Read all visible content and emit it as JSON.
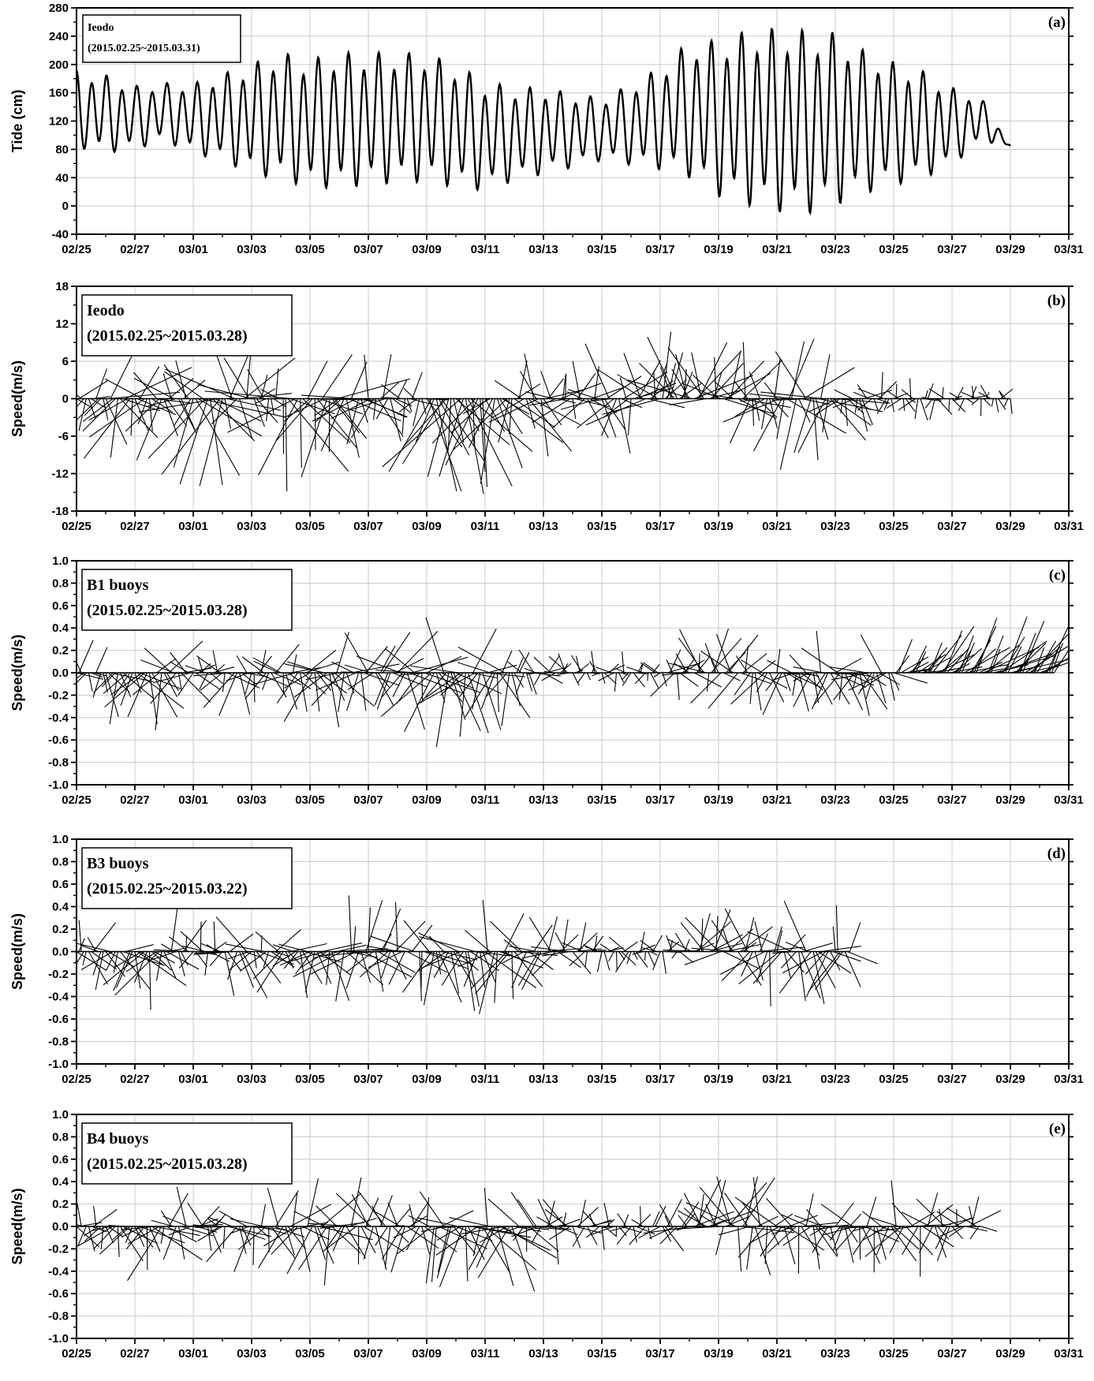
{
  "chart_data": [
    {
      "panel": "a",
      "type": "line",
      "tag": "(a)",
      "ylabel": "Tide (cm)",
      "legend_lines": [
        "Ieodo",
        "(2015.02.25~2015.03.31)"
      ],
      "legend_font_size": 14,
      "yticks": [
        280,
        240,
        200,
        160,
        120,
        80,
        40,
        0,
        -40
      ],
      "ylim": [
        -40,
        280
      ],
      "xlim": [
        "02/25",
        "03/31"
      ],
      "xticks": [
        "02/25",
        "02/27",
        "03/01",
        "03/03",
        "03/05",
        "03/07",
        "03/09",
        "03/11",
        "03/13",
        "03/15",
        "03/17",
        "03/19",
        "03/21",
        "03/23",
        "03/25",
        "03/27",
        "03/29",
        "03/31"
      ],
      "grid": true,
      "series": [
        {
          "values_note": "semi-diurnal tide; daily higher-high / lower-low envelope",
          "x": [
            "02/25",
            "02/26",
            "02/27",
            "02/28",
            "03/01",
            "03/02",
            "03/03",
            "03/04",
            "03/05",
            "03/06",
            "03/07",
            "03/08",
            "03/09",
            "03/10",
            "03/11",
            "03/12",
            "03/13",
            "03/14",
            "03/15",
            "03/16",
            "03/17",
            "03/18",
            "03/19",
            "03/20",
            "03/21",
            "03/22",
            "03/23",
            "03/24",
            "03/25",
            "03/26",
            "03/27",
            "03/28",
            "03/29"
          ],
          "high": [
            195,
            188,
            172,
            176,
            176,
            190,
            205,
            222,
            212,
            222,
            222,
            222,
            220,
            205,
            180,
            172,
            170,
            162,
            155,
            175,
            200,
            238,
            240,
            255,
            258,
            255,
            252,
            225,
            208,
            195,
            170,
            155,
            85
          ],
          "low": [
            80,
            72,
            78,
            90,
            72,
            60,
            42,
            32,
            22,
            20,
            25,
            28,
            30,
            22,
            18,
            32,
            42,
            52,
            62,
            55,
            48,
            35,
            8,
            -5,
            -15,
            -18,
            -5,
            12,
            25,
            35,
            55,
            90,
            85
          ]
        }
      ]
    },
    {
      "panel": "b",
      "type": "stick",
      "tag": "(b)",
      "ylabel": "Speed(m/s)",
      "legend_lines": [
        "Ieodo",
        "(2015.02.25~2015.03.28)"
      ],
      "legend_font_size": 20,
      "yticks": [
        18,
        12,
        6,
        0,
        -6,
        -12,
        -18
      ],
      "ylim": [
        -18,
        18
      ],
      "xlim": [
        "02/25",
        "03/31"
      ],
      "end": "03/29",
      "xticks": [
        "02/25",
        "02/27",
        "03/01",
        "03/03",
        "03/05",
        "03/07",
        "03/09",
        "03/11",
        "03/13",
        "03/15",
        "03/17",
        "03/19",
        "03/21",
        "03/23",
        "03/25",
        "03/27",
        "03/29",
        "03/31"
      ],
      "grid": true,
      "amplitude_by_day": [
        6,
        14,
        12,
        8,
        16,
        14,
        6,
        16,
        14,
        10,
        8,
        6,
        16,
        18,
        14,
        12,
        8,
        8,
        10,
        12,
        13,
        12,
        10,
        8,
        12,
        12,
        6,
        5,
        4,
        4,
        3,
        3,
        2
      ],
      "bias_by_day": [
        -0.5,
        -0.6,
        -0.5,
        0.0,
        -0.6,
        0.2,
        -0.2,
        -0.6,
        -0.6,
        -0.5,
        -0.3,
        -0.1,
        -0.9,
        -0.9,
        -0.8,
        -0.3,
        0.2,
        0.1,
        -0.2,
        0.5,
        0.8,
        0.7,
        0.5,
        -0.5,
        -0.2,
        -0.5,
        -0.6,
        -0.2,
        -0.1,
        -0.1,
        -0.1,
        -0.1,
        -0.1
      ]
    },
    {
      "panel": "c",
      "type": "stick",
      "tag": "(c)",
      "ylabel": "Speed(m/s)",
      "legend_lines": [
        "B1 buoys",
        "(2015.02.25~2015.03.28)"
      ],
      "legend_font_size": 20,
      "yticks": [
        1.0,
        0.8,
        0.6,
        0.4,
        0.2,
        0.0,
        -0.2,
        -0.4,
        -0.6,
        -0.8,
        -1.0
      ],
      "ylim": [
        -1.0,
        1.0
      ],
      "xlim": [
        "02/25",
        "03/31"
      ],
      "end": "03/30.5",
      "xticks": [
        "02/25",
        "02/27",
        "03/01",
        "03/03",
        "03/05",
        "03/07",
        "03/09",
        "03/11",
        "03/13",
        "03/15",
        "03/17",
        "03/19",
        "03/21",
        "03/23",
        "03/25",
        "03/27",
        "03/29",
        "03/31"
      ],
      "grid": true,
      "amplitude_by_day": [
        0.35,
        0.5,
        0.6,
        0.45,
        0.3,
        0.45,
        0.35,
        0.45,
        0.55,
        0.5,
        0.5,
        0.6,
        0.7,
        0.7,
        0.55,
        0.3,
        0.25,
        0.2,
        0.2,
        0.2,
        0.35,
        0.45,
        0.45,
        0.45,
        0.45,
        0.45,
        0.45,
        0.45,
        0.35,
        0.55,
        0.6,
        0.65,
        0.65,
        0.65,
        0.6,
        0.5
      ],
      "bias_by_day": [
        -0.3,
        -0.7,
        -0.7,
        -0.3,
        0.0,
        -0.5,
        0.0,
        -0.5,
        -0.6,
        -0.4,
        -0.2,
        -0.3,
        -0.6,
        -0.6,
        -0.5,
        -0.2,
        0.3,
        0.2,
        -0.3,
        -0.3,
        0.2,
        0.6,
        0.5,
        -0.4,
        -0.5,
        -0.5,
        -0.5,
        -0.5,
        0.8,
        0.9,
        0.9,
        0.9,
        0.9,
        0.9,
        0.8,
        0.8
      ],
      "east_bias_by_day": [
        0,
        0,
        0,
        0,
        0,
        0,
        0,
        0,
        0,
        0,
        0,
        0,
        0,
        0,
        0,
        0,
        0,
        0,
        0,
        0,
        0,
        0,
        0,
        0,
        0,
        0,
        0,
        0,
        0.8,
        0.8,
        0.8,
        0.8,
        0.8,
        0.8,
        0.8,
        0.8
      ]
    },
    {
      "panel": "d",
      "type": "stick",
      "tag": "(d)",
      "ylabel": "Speed(m/s)",
      "legend_lines": [
        "B3 buoys",
        "(2015.02.25~2015.03.22)"
      ],
      "legend_font_size": 20,
      "yticks": [
        1.0,
        0.8,
        0.6,
        0.4,
        0.2,
        0.0,
        -0.2,
        -0.4,
        -0.6,
        -0.8,
        -1.0
      ],
      "ylim": [
        -1.0,
        1.0
      ],
      "xlim": [
        "02/25",
        "03/31"
      ],
      "end": "03/23.5",
      "xticks": [
        "02/25",
        "02/27",
        "03/01",
        "03/03",
        "03/05",
        "03/07",
        "03/09",
        "03/11",
        "03/13",
        "03/15",
        "03/17",
        "03/19",
        "03/21",
        "03/23",
        "03/25",
        "03/27",
        "03/29",
        "03/31"
      ],
      "grid": true,
      "amplitude_by_day": [
        0.35,
        0.45,
        0.6,
        0.4,
        0.3,
        0.5,
        0.4,
        0.45,
        0.55,
        0.55,
        0.5,
        0.5,
        0.55,
        0.65,
        0.6,
        0.45,
        0.4,
        0.35,
        0.25,
        0.2,
        0.2,
        0.45,
        0.45,
        0.5,
        0.5,
        0.5,
        0.5,
        0.6,
        0.6
      ],
      "bias_by_day": [
        -0.2,
        -0.6,
        -0.8,
        -0.1,
        0.0,
        -0.5,
        -0.2,
        -0.5,
        -0.5,
        -0.3,
        -0.1,
        -0.1,
        -0.5,
        -0.6,
        -0.5,
        -0.2,
        0.3,
        0.3,
        -0.4,
        -0.4,
        0.2,
        0.7,
        0.5,
        -0.3,
        -0.4,
        -0.5,
        -0.5,
        -0.5,
        -0.5
      ],
      "east_bias_by_day": []
    },
    {
      "panel": "e",
      "type": "stick",
      "tag": "(e)",
      "ylabel": "Speed(m/s)",
      "legend_lines": [
        "B4 buoys",
        "(2015.02.25~2015.03.28)"
      ],
      "legend_font_size": 20,
      "yticks": [
        1.0,
        0.8,
        0.6,
        0.4,
        0.2,
        0.0,
        -0.2,
        -0.4,
        -0.6,
        -0.8,
        -1.0
      ],
      "ylim": [
        -1.0,
        1.0
      ],
      "xlim": [
        "02/25",
        "03/31"
      ],
      "end": "03/28",
      "xticks": [
        "02/25",
        "02/27",
        "03/01",
        "03/03",
        "03/05",
        "03/07",
        "03/09",
        "03/11",
        "03/13",
        "03/15",
        "03/17",
        "03/19",
        "03/21",
        "03/23",
        "03/25",
        "03/27",
        "03/29",
        "03/31"
      ],
      "grid": true,
      "amplitude_by_day": [
        0.3,
        0.45,
        0.6,
        0.4,
        0.3,
        0.45,
        0.4,
        0.45,
        0.55,
        0.5,
        0.5,
        0.5,
        0.55,
        0.65,
        0.65,
        0.4,
        0.35,
        0.3,
        0.25,
        0.25,
        0.3,
        0.5,
        0.55,
        0.5,
        0.45,
        0.45,
        0.45,
        0.45,
        0.45,
        0.4,
        0.4,
        0.4,
        0.4
      ],
      "bias_by_day": [
        -0.3,
        -0.7,
        -0.7,
        -0.2,
        0.0,
        -0.4,
        -0.1,
        -0.4,
        -0.5,
        -0.3,
        -0.1,
        -0.1,
        -0.4,
        -0.6,
        -0.6,
        -0.2,
        0.3,
        0.2,
        -0.2,
        -0.2,
        0.1,
        0.6,
        0.5,
        -0.3,
        -0.4,
        -0.4,
        -0.4,
        -0.4,
        -0.3,
        -0.2,
        0.3,
        0.5,
        0.4
      ],
      "east_bias_by_day": []
    }
  ]
}
